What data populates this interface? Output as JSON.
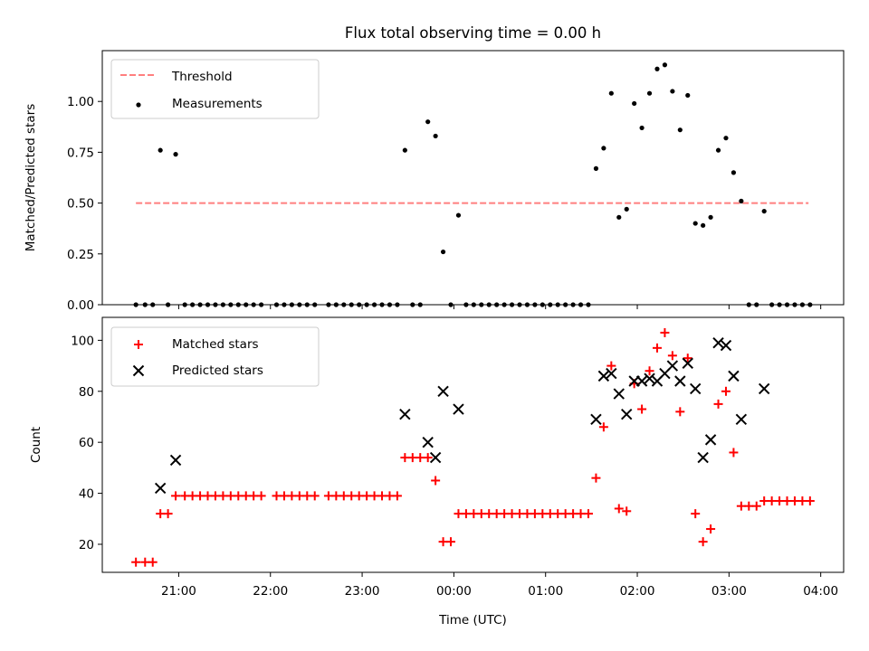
{
  "chart_data": [
    {
      "type": "scatter",
      "title": "Flux total observing time = 0.00 h",
      "xlabel": "",
      "ylabel": "Matched/Predicted stars",
      "ylim": [
        0,
        1.25
      ],
      "xlim": [
        "20:10",
        "04:15"
      ],
      "yticks": [
        0.0,
        0.25,
        0.5,
        0.75,
        1.0
      ],
      "ytick_labels": [
        "0.00",
        "0.25",
        "0.50",
        "0.75",
        "1.00"
      ],
      "legend_position": "top-left",
      "threshold": {
        "name": "Threshold",
        "value": 0.5,
        "x_start": "20:32",
        "x_end": "03:52",
        "color": "#ff7f7f",
        "style": "dashed"
      },
      "series": [
        {
          "name": "Measurements",
          "marker": "dot",
          "color": "#000000",
          "points": [
            [
              "20:32",
              0
            ],
            [
              "20:38",
              0
            ],
            [
              "20:43",
              0
            ],
            [
              "20:48",
              0.76
            ],
            [
              "20:53",
              0
            ],
            [
              "20:58",
              0.74
            ],
            [
              "21:04",
              0
            ],
            [
              "21:09",
              0
            ],
            [
              "21:14",
              0
            ],
            [
              "21:19",
              0
            ],
            [
              "21:24",
              0
            ],
            [
              "21:29",
              0
            ],
            [
              "21:34",
              0
            ],
            [
              "21:39",
              0
            ],
            [
              "21:44",
              0
            ],
            [
              "21:49",
              0
            ],
            [
              "21:54",
              0
            ],
            [
              "22:04",
              0
            ],
            [
              "22:09",
              0
            ],
            [
              "22:14",
              0
            ],
            [
              "22:19",
              0
            ],
            [
              "22:24",
              0
            ],
            [
              "22:29",
              0
            ],
            [
              "22:38",
              0
            ],
            [
              "22:43",
              0
            ],
            [
              "22:48",
              0
            ],
            [
              "22:53",
              0
            ],
            [
              "22:58",
              0
            ],
            [
              "23:03",
              0
            ],
            [
              "23:08",
              0
            ],
            [
              "23:13",
              0
            ],
            [
              "23:18",
              0
            ],
            [
              "23:23",
              0
            ],
            [
              "23:28",
              0.76
            ],
            [
              "23:33",
              0
            ],
            [
              "23:38",
              0
            ],
            [
              "23:43",
              0.9
            ],
            [
              "23:48",
              0.83
            ],
            [
              "23:53",
              0.26
            ],
            [
              "23:58",
              0
            ],
            [
              "00:03",
              0.44
            ],
            [
              "00:08",
              0
            ],
            [
              "00:13",
              0
            ],
            [
              "00:18",
              0
            ],
            [
              "00:23",
              0
            ],
            [
              "00:28",
              0
            ],
            [
              "00:33",
              0
            ],
            [
              "00:38",
              0
            ],
            [
              "00:43",
              0
            ],
            [
              "00:48",
              0
            ],
            [
              "00:53",
              0
            ],
            [
              "00:58",
              0
            ],
            [
              "01:03",
              0
            ],
            [
              "01:08",
              0
            ],
            [
              "01:13",
              0
            ],
            [
              "01:18",
              0
            ],
            [
              "01:23",
              0
            ],
            [
              "01:28",
              0
            ],
            [
              "01:33",
              0.67
            ],
            [
              "01:38",
              0.77
            ],
            [
              "01:43",
              1.04
            ],
            [
              "01:48",
              0.43
            ],
            [
              "01:53",
              0.47
            ],
            [
              "01:58",
              0.99
            ],
            [
              "02:03",
              0.87
            ],
            [
              "02:08",
              1.04
            ],
            [
              "02:13",
              1.16
            ],
            [
              "02:18",
              1.18
            ],
            [
              "02:23",
              1.05
            ],
            [
              "02:28",
              0.86
            ],
            [
              "02:33",
              1.03
            ],
            [
              "02:38",
              0.4
            ],
            [
              "02:43",
              0.39
            ],
            [
              "02:48",
              0.43
            ],
            [
              "02:53",
              0.76
            ],
            [
              "02:58",
              0.82
            ],
            [
              "03:03",
              0.65
            ],
            [
              "03:08",
              0.51
            ],
            [
              "03:13",
              0
            ],
            [
              "03:18",
              0
            ],
            [
              "03:23",
              0.46
            ],
            [
              "03:28",
              0
            ],
            [
              "03:33",
              0
            ],
            [
              "03:38",
              0
            ],
            [
              "03:43",
              0
            ],
            [
              "03:48",
              0
            ],
            [
              "03:53",
              0
            ]
          ]
        }
      ]
    },
    {
      "type": "scatter",
      "title": "",
      "xlabel": "Time (UTC)",
      "ylabel": "Count",
      "ylim": [
        9,
        109
      ],
      "xlim": [
        "20:10",
        "04:15"
      ],
      "yticks": [
        20,
        40,
        60,
        80,
        100
      ],
      "ytick_labels": [
        "20",
        "40",
        "60",
        "80",
        "100"
      ],
      "xticks": [
        "21:00",
        "22:00",
        "23:00",
        "00:00",
        "01:00",
        "02:00",
        "03:00",
        "04:00"
      ],
      "legend_position": "top-left",
      "series": [
        {
          "name": "Matched stars",
          "marker": "plus",
          "color": "#ff0000",
          "points": [
            [
              "20:32",
              13
            ],
            [
              "20:38",
              13
            ],
            [
              "20:43",
              13
            ],
            [
              "20:48",
              32
            ],
            [
              "20:53",
              32
            ],
            [
              "20:58",
              39
            ],
            [
              "21:04",
              39
            ],
            [
              "21:09",
              39
            ],
            [
              "21:14",
              39
            ],
            [
              "21:19",
              39
            ],
            [
              "21:24",
              39
            ],
            [
              "21:29",
              39
            ],
            [
              "21:34",
              39
            ],
            [
              "21:39",
              39
            ],
            [
              "21:44",
              39
            ],
            [
              "21:49",
              39
            ],
            [
              "21:54",
              39
            ],
            [
              "22:04",
              39
            ],
            [
              "22:09",
              39
            ],
            [
              "22:14",
              39
            ],
            [
              "22:19",
              39
            ],
            [
              "22:24",
              39
            ],
            [
              "22:29",
              39
            ],
            [
              "22:38",
              39
            ],
            [
              "22:43",
              39
            ],
            [
              "22:48",
              39
            ],
            [
              "22:53",
              39
            ],
            [
              "22:58",
              39
            ],
            [
              "23:03",
              39
            ],
            [
              "23:08",
              39
            ],
            [
              "23:13",
              39
            ],
            [
              "23:18",
              39
            ],
            [
              "23:23",
              39
            ],
            [
              "23:28",
              54
            ],
            [
              "23:33",
              54
            ],
            [
              "23:38",
              54
            ],
            [
              "23:43",
              54
            ],
            [
              "23:48",
              45
            ],
            [
              "23:53",
              21
            ],
            [
              "23:58",
              21
            ],
            [
              "00:03",
              32
            ],
            [
              "00:08",
              32
            ],
            [
              "00:13",
              32
            ],
            [
              "00:18",
              32
            ],
            [
              "00:23",
              32
            ],
            [
              "00:28",
              32
            ],
            [
              "00:33",
              32
            ],
            [
              "00:38",
              32
            ],
            [
              "00:43",
              32
            ],
            [
              "00:48",
              32
            ],
            [
              "00:53",
              32
            ],
            [
              "00:58",
              32
            ],
            [
              "01:03",
              32
            ],
            [
              "01:08",
              32
            ],
            [
              "01:13",
              32
            ],
            [
              "01:18",
              32
            ],
            [
              "01:23",
              32
            ],
            [
              "01:28",
              32
            ],
            [
              "01:33",
              46
            ],
            [
              "01:38",
              66
            ],
            [
              "01:43",
              90
            ],
            [
              "01:48",
              34
            ],
            [
              "01:53",
              33
            ],
            [
              "01:58",
              83
            ],
            [
              "02:03",
              73
            ],
            [
              "02:08",
              88
            ],
            [
              "02:13",
              97
            ],
            [
              "02:18",
              103
            ],
            [
              "02:23",
              94
            ],
            [
              "02:28",
              72
            ],
            [
              "02:33",
              93
            ],
            [
              "02:38",
              32
            ],
            [
              "02:43",
              21
            ],
            [
              "02:48",
              26
            ],
            [
              "02:53",
              75
            ],
            [
              "02:58",
              80
            ],
            [
              "03:03",
              56
            ],
            [
              "03:08",
              35
            ],
            [
              "03:13",
              35
            ],
            [
              "03:18",
              35
            ],
            [
              "03:23",
              37
            ],
            [
              "03:28",
              37
            ],
            [
              "03:33",
              37
            ],
            [
              "03:38",
              37
            ],
            [
              "03:43",
              37
            ],
            [
              "03:48",
              37
            ],
            [
              "03:53",
              37
            ]
          ]
        },
        {
          "name": "Predicted stars",
          "marker": "x",
          "color": "#000000",
          "points": [
            [
              "20:48",
              42
            ],
            [
              "20:58",
              53
            ],
            [
              "23:28",
              71
            ],
            [
              "23:43",
              60
            ],
            [
              "23:48",
              54
            ],
            [
              "23:53",
              80
            ],
            [
              "00:03",
              73
            ],
            [
              "01:33",
              69
            ],
            [
              "01:38",
              86
            ],
            [
              "01:43",
              87
            ],
            [
              "01:48",
              79
            ],
            [
              "01:53",
              71
            ],
            [
              "01:58",
              84
            ],
            [
              "02:03",
              84
            ],
            [
              "02:08",
              85
            ],
            [
              "02:13",
              84
            ],
            [
              "02:18",
              87
            ],
            [
              "02:23",
              90
            ],
            [
              "02:28",
              84
            ],
            [
              "02:33",
              91
            ],
            [
              "02:38",
              81
            ],
            [
              "02:43",
              54
            ],
            [
              "02:48",
              61
            ],
            [
              "02:53",
              99
            ],
            [
              "02:58",
              98
            ],
            [
              "03:03",
              86
            ],
            [
              "03:08",
              69
            ],
            [
              "03:23",
              81
            ]
          ]
        }
      ]
    }
  ]
}
